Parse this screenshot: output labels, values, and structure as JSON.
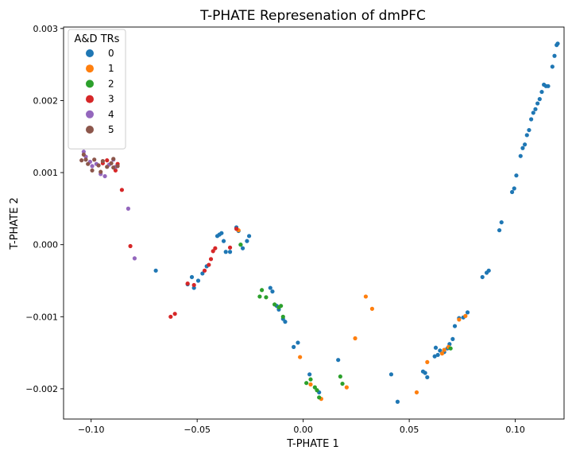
{
  "chart_data": {
    "type": "scatter",
    "title": "T-PHATE Represenation of dmPFC",
    "xlabel": "T-PHATE 1",
    "ylabel": "T-PHATE 2",
    "xlim": [
      -0.113,
      0.123
    ],
    "ylim": [
      -0.00242,
      0.00302
    ],
    "xticks": [
      -0.1,
      -0.05,
      0.0,
      0.05,
      0.1
    ],
    "xtick_labels": [
      "−0.10",
      "−0.05",
      "0.00",
      "0.05",
      "0.10"
    ],
    "yticks": [
      -0.002,
      -0.001,
      0.0,
      0.001,
      0.002,
      0.003
    ],
    "ytick_labels": [
      "−0.002",
      "−0.001",
      "0.000",
      "0.001",
      "0.002",
      "0.003"
    ],
    "grid": false,
    "legend": {
      "title": "A&D TRs",
      "placement": "top-left",
      "entries": [
        "0",
        "1",
        "2",
        "3",
        "4",
        "5"
      ]
    },
    "series": [
      {
        "name": "0",
        "color": "#1f77b4",
        "points": [
          [
            -0.0695,
            -0.00036
          ],
          [
            -0.0545,
            -0.00055
          ],
          [
            -0.0525,
            -0.00045
          ],
          [
            -0.0515,
            -0.0006
          ],
          [
            -0.0495,
            -0.0005
          ],
          [
            -0.0475,
            -0.0004
          ],
          [
            -0.0455,
            -0.0003
          ],
          [
            -0.0405,
            0.00012
          ],
          [
            -0.0395,
            0.00014
          ],
          [
            -0.0385,
            0.00016
          ],
          [
            -0.0375,
            5e-05
          ],
          [
            -0.0365,
            -0.0001
          ],
          [
            -0.0345,
            -0.0001
          ],
          [
            -0.0315,
            0.00024
          ],
          [
            -0.0305,
            0.00019
          ],
          [
            -0.0295,
            0.0
          ],
          [
            -0.0285,
            -5e-05
          ],
          [
            -0.0265,
            5e-05
          ],
          [
            -0.0255,
            0.00012
          ],
          [
            -0.0155,
            -0.0006
          ],
          [
            -0.0145,
            -0.00065
          ],
          [
            -0.0125,
            -0.00085
          ],
          [
            -0.0115,
            -0.0009
          ],
          [
            -0.0095,
            -0.00103
          ],
          [
            -0.0085,
            -0.00107
          ],
          [
            -0.0045,
            -0.00142
          ],
          [
            -0.0025,
            -0.00136
          ],
          [
            0.003,
            -0.0018
          ],
          [
            0.0075,
            -0.00205
          ],
          [
            0.0165,
            -0.0016
          ],
          [
            0.0415,
            -0.0018
          ],
          [
            0.0445,
            -0.00218
          ],
          [
            0.0565,
            -0.00176
          ],
          [
            0.0575,
            -0.00178
          ],
          [
            0.0585,
            -0.00184
          ],
          [
            0.062,
            -0.00155
          ],
          [
            0.0625,
            -0.00143
          ],
          [
            0.0635,
            -0.00153
          ],
          [
            0.0645,
            -0.00147
          ],
          [
            0.0665,
            -0.00149
          ],
          [
            0.068,
            -0.00144
          ],
          [
            0.069,
            -0.00138
          ],
          [
            0.0705,
            -0.00131
          ],
          [
            0.0715,
            -0.00113
          ],
          [
            0.0735,
            -0.00102
          ],
          [
            0.0755,
            -0.00101
          ],
          [
            0.0775,
            -0.00094
          ],
          [
            0.0845,
            -0.00045
          ],
          [
            0.0865,
            -0.00039
          ],
          [
            0.0875,
            -0.00036
          ],
          [
            0.0925,
            0.0002
          ],
          [
            0.0935,
            0.00031
          ],
          [
            0.0985,
            0.00073
          ],
          [
            0.0995,
            0.00078
          ],
          [
            0.1005,
            0.00096
          ],
          [
            0.1025,
            0.00123
          ],
          [
            0.1035,
            0.00134
          ],
          [
            0.1045,
            0.00139
          ],
          [
            0.1055,
            0.00152
          ],
          [
            0.1065,
            0.00159
          ],
          [
            0.1075,
            0.00174
          ],
          [
            0.1085,
            0.00183
          ],
          [
            0.1095,
            0.00188
          ],
          [
            0.1105,
            0.00196
          ],
          [
            0.1115,
            0.00202
          ],
          [
            0.1125,
            0.00212
          ],
          [
            0.1135,
            0.00222
          ],
          [
            0.1145,
            0.0022
          ],
          [
            0.1155,
            0.0022
          ],
          [
            0.1175,
            0.00247
          ],
          [
            0.1185,
            0.00262
          ],
          [
            0.1195,
            0.00277
          ],
          [
            0.12,
            0.00279
          ]
        ]
      },
      {
        "name": "1",
        "color": "#ff7f0e",
        "points": [
          [
            -0.0305,
            0.0002
          ],
          [
            -0.0015,
            -0.00156
          ],
          [
            0.0035,
            -0.00194
          ],
          [
            0.0085,
            -0.00214
          ],
          [
            0.0205,
            -0.00198
          ],
          [
            0.0245,
            -0.0013
          ],
          [
            0.0295,
            -0.00072
          ],
          [
            0.0325,
            -0.00089
          ],
          [
            0.0535,
            -0.00205
          ],
          [
            0.0585,
            -0.00163
          ],
          [
            0.0655,
            -0.00151
          ],
          [
            0.0665,
            -0.00146
          ],
          [
            0.0685,
            -0.00142
          ],
          [
            0.0735,
            -0.00104
          ],
          [
            0.0765,
            -0.00099
          ]
        ]
      },
      {
        "name": "2",
        "color": "#2ca02c",
        "points": [
          [
            -0.0295,
            0.0
          ],
          [
            -0.0205,
            -0.00072
          ],
          [
            -0.0195,
            -0.00063
          ],
          [
            -0.0175,
            -0.00073
          ],
          [
            -0.0135,
            -0.00083
          ],
          [
            -0.0115,
            -0.00087
          ],
          [
            -0.0105,
            -0.00085
          ],
          [
            -0.0095,
            -0.001
          ],
          [
            0.0015,
            -0.00192
          ],
          [
            0.0035,
            -0.00187
          ],
          [
            0.0055,
            -0.00198
          ],
          [
            0.0065,
            -0.00202
          ],
          [
            0.0075,
            -0.00212
          ],
          [
            0.0175,
            -0.00183
          ],
          [
            0.0185,
            -0.00193
          ],
          [
            0.0695,
            -0.00144
          ]
        ]
      },
      {
        "name": "3",
        "color": "#d62728",
        "points": [
          [
            -0.0945,
            0.00113
          ],
          [
            -0.0925,
            0.00117
          ],
          [
            -0.0885,
            0.00103
          ],
          [
            -0.0875,
            0.00112
          ],
          [
            -0.0855,
            0.00076
          ],
          [
            -0.0815,
            -2e-05
          ],
          [
            -0.0625,
            -0.001
          ],
          [
            -0.0605,
            -0.00096
          ],
          [
            -0.0545,
            -0.00054
          ],
          [
            -0.0515,
            -0.00056
          ],
          [
            -0.0465,
            -0.00036
          ],
          [
            -0.0445,
            -0.00028
          ],
          [
            -0.0435,
            -0.0002
          ],
          [
            -0.0425,
            -9e-05
          ],
          [
            -0.0415,
            -5e-05
          ],
          [
            -0.0345,
            -4e-05
          ],
          [
            -0.0315,
            0.00022
          ]
        ]
      },
      {
        "name": "4",
        "color": "#9467bd",
        "points": [
          [
            -0.1035,
            0.00129
          ],
          [
            -0.1025,
            0.00122
          ],
          [
            -0.1005,
            0.00115
          ],
          [
            -0.0995,
            0.00109
          ],
          [
            -0.0975,
            0.00112
          ],
          [
            -0.0955,
            0.00098
          ],
          [
            -0.0935,
            0.00095
          ],
          [
            -0.0915,
            0.00111
          ],
          [
            -0.0895,
            0.00118
          ],
          [
            -0.0885,
            0.00108
          ],
          [
            -0.0825,
            0.0005
          ],
          [
            -0.0795,
            -0.00019
          ]
        ]
      },
      {
        "name": "5",
        "color": "#8c564b",
        "points": [
          [
            -0.1045,
            0.00117
          ],
          [
            -0.1035,
            0.00125
          ],
          [
            -0.1025,
            0.00118
          ],
          [
            -0.1015,
            0.00112
          ],
          [
            -0.0995,
            0.00103
          ],
          [
            -0.0985,
            0.00118
          ],
          [
            -0.0965,
            0.0011
          ],
          [
            -0.0955,
            0.00101
          ],
          [
            -0.0945,
            0.00116
          ],
          [
            -0.0925,
            0.00108
          ],
          [
            -0.0905,
            0.00113
          ],
          [
            -0.0895,
            0.00119
          ],
          [
            -0.0895,
            0.00107
          ],
          [
            -0.0875,
            0.00109
          ]
        ]
      }
    ]
  }
}
